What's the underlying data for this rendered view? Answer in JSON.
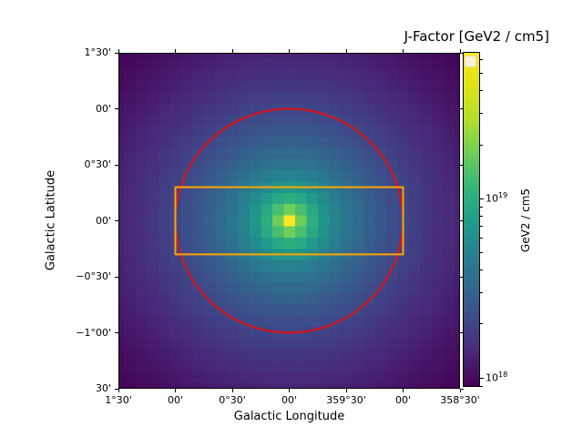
{
  "chart_data": {
    "type": "heatmap",
    "title": "J-Factor [GeV2 / cm5]",
    "xlabel": "Galactic Longitude",
    "ylabel": "Galactic Latitude",
    "unit": "GeV2 / cm5",
    "x_tick_labels": [
      "1°30'",
      "00'",
      "0°30'",
      "00'",
      "359°30'",
      "00'",
      "358°30'"
    ],
    "y_tick_labels": [
      "1°30'",
      "00'",
      "0°30'",
      "00'",
      "−0°30'",
      "−1°00'",
      "30'"
    ],
    "lon_range_deg": [
      1.5,
      -1.5
    ],
    "lat_range_deg": [
      1.5,
      -1.5
    ],
    "grid": {
      "n_lon": 31,
      "n_lat": 31,
      "cell_deg": 0.1
    },
    "colormap": "viridis",
    "scale": "log",
    "vmin": 8.9e+17,
    "vmax": 6.6e+19,
    "peak": {
      "lon_deg": 0,
      "lat_deg": 0,
      "value": 6.6e+19
    },
    "profile": {
      "form": "t = clamp(a - b*log10(r_deg + c), t_min, 1); cell color = viridis(t); radially symmetric cusp centered on (0,0)",
      "a": 0.2,
      "b": 0.585,
      "c": 0.04,
      "t_min": 0.01
    },
    "colormap_stops": [
      [
        0.0,
        "#440154"
      ],
      [
        0.1,
        "#482878"
      ],
      [
        0.2,
        "#3e4a89"
      ],
      [
        0.3,
        "#31688e"
      ],
      [
        0.4,
        "#26828e"
      ],
      [
        0.5,
        "#1f9e89"
      ],
      [
        0.6,
        "#35b779"
      ],
      [
        0.7,
        "#6ece58"
      ],
      [
        0.8,
        "#b5de2b"
      ],
      [
        0.9,
        "#dde318"
      ],
      [
        1.0,
        "#fde725"
      ]
    ],
    "colorbar_major_ticks": [
      {
        "value": 1e+19,
        "label": "10^19"
      },
      {
        "value": 1e+18,
        "label": "10^18"
      }
    ],
    "overlays": [
      {
        "shape": "circle",
        "name": "roi-circle",
        "center_deg": [
          0,
          0
        ],
        "radius_deg": 1.0,
        "color": "#e01212",
        "line_width": 2
      },
      {
        "shape": "rect",
        "name": "roi-rect",
        "center_deg": [
          0,
          0
        ],
        "half_width_lon_deg": 1.0,
        "half_height_lat_deg": 0.3,
        "color": "#ffa500",
        "line_width": 2
      }
    ],
    "legend_swatch": {
      "fill": "#f6f3d8",
      "border": "#e0dbae"
    },
    "axis_color": "#000000",
    "grid_on": false
  }
}
